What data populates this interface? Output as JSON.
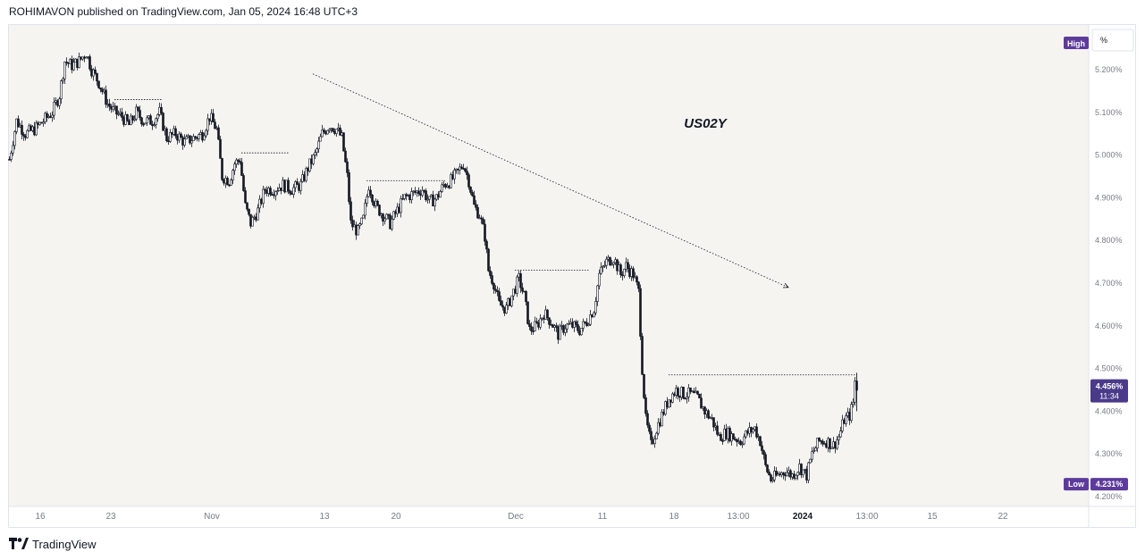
{
  "header": {
    "published_text": "ROHIMAVON published on TradingView.com, Jan 05, 2024 16:48 UTC+3"
  },
  "footer": {
    "brand": "TradingView",
    "logo_icon": "tradingview-logo-icon"
  },
  "colors": {
    "plot_bg": "#f5f4f1",
    "candle": "#131722",
    "badge_purple": "#5d3b9c",
    "badge_dark": "#4a3a8a",
    "axis_text": "#787b86",
    "trendline": "#131722"
  },
  "chart_data": {
    "type": "line",
    "symbol": "US02Y",
    "style": "candlestick",
    "unit": "%",
    "ylim": [
      4.2,
      5.26
    ],
    "y_ticks": [
      "5.200%",
      "5.100%",
      "5.000%",
      "4.900%",
      "4.800%",
      "4.700%",
      "4.600%",
      "4.500%",
      "4.400%",
      "4.300%",
      "4.200%"
    ],
    "y_tick_values": [
      5.2,
      5.1,
      5.0,
      4.9,
      4.8,
      4.7,
      4.6,
      4.5,
      4.4,
      4.3,
      4.2
    ],
    "x_ticks": [
      "16",
      "23",
      "Nov",
      "13",
      "20",
      "Dec",
      "11",
      "18",
      "13:00",
      "2024",
      "13:00",
      "15",
      "22"
    ],
    "x_tick_bold": [
      false,
      false,
      false,
      false,
      false,
      false,
      false,
      false,
      false,
      true,
      false,
      false,
      false
    ],
    "price_path": [
      [
        0,
        4.99
      ],
      [
        8,
        5.08
      ],
      [
        18,
        5.05
      ],
      [
        28,
        5.06
      ],
      [
        38,
        5.08
      ],
      [
        48,
        5.1
      ],
      [
        56,
        5.14
      ],
      [
        62,
        5.22
      ],
      [
        70,
        5.21
      ],
      [
        78,
        5.22
      ],
      [
        86,
        5.24
      ],
      [
        92,
        5.2
      ],
      [
        100,
        5.17
      ],
      [
        110,
        5.12
      ],
      [
        118,
        5.1
      ],
      [
        126,
        5.09
      ],
      [
        134,
        5.07
      ],
      [
        142,
        5.1
      ],
      [
        150,
        5.08
      ],
      [
        160,
        5.08
      ],
      [
        168,
        5.1
      ],
      [
        176,
        5.04
      ],
      [
        186,
        5.05
      ],
      [
        196,
        5.03
      ],
      [
        206,
        5.04
      ],
      [
        216,
        5.05
      ],
      [
        224,
        5.09
      ],
      [
        232,
        5.06
      ],
      [
        238,
        4.95
      ],
      [
        246,
        4.94
      ],
      [
        252,
        4.98
      ],
      [
        258,
        4.99
      ],
      [
        264,
        4.88
      ],
      [
        270,
        4.84
      ],
      [
        278,
        4.87
      ],
      [
        286,
        4.92
      ],
      [
        296,
        4.92
      ],
      [
        306,
        4.93
      ],
      [
        316,
        4.92
      ],
      [
        326,
        4.93
      ],
      [
        334,
        4.97
      ],
      [
        342,
        5.0
      ],
      [
        350,
        5.05
      ],
      [
        358,
        5.07
      ],
      [
        366,
        5.06
      ],
      [
        372,
        5.04
      ],
      [
        378,
        4.95
      ],
      [
        382,
        4.84
      ],
      [
        390,
        4.82
      ],
      [
        396,
        4.85
      ],
      [
        402,
        4.93
      ],
      [
        410,
        4.88
      ],
      [
        418,
        4.86
      ],
      [
        426,
        4.84
      ],
      [
        434,
        4.87
      ],
      [
        442,
        4.9
      ],
      [
        452,
        4.91
      ],
      [
        462,
        4.92
      ],
      [
        470,
        4.89
      ],
      [
        478,
        4.9
      ],
      [
        486,
        4.93
      ],
      [
        494,
        4.94
      ],
      [
        502,
        4.96
      ],
      [
        508,
        4.98
      ],
      [
        514,
        4.94
      ],
      [
        520,
        4.88
      ],
      [
        526,
        4.86
      ],
      [
        532,
        4.81
      ],
      [
        536,
        4.73
      ],
      [
        542,
        4.7
      ],
      [
        548,
        4.65
      ],
      [
        556,
        4.64
      ],
      [
        564,
        4.68
      ],
      [
        570,
        4.71
      ],
      [
        576,
        4.67
      ],
      [
        582,
        4.59
      ],
      [
        590,
        4.6
      ],
      [
        598,
        4.63
      ],
      [
        606,
        4.61
      ],
      [
        614,
        4.58
      ],
      [
        622,
        4.6
      ],
      [
        630,
        4.6
      ],
      [
        638,
        4.59
      ],
      [
        646,
        4.61
      ],
      [
        654,
        4.64
      ],
      [
        660,
        4.72
      ],
      [
        668,
        4.75
      ],
      [
        676,
        4.76
      ],
      [
        684,
        4.72
      ],
      [
        690,
        4.74
      ],
      [
        698,
        4.72
      ],
      [
        704,
        4.68
      ],
      [
        708,
        4.5
      ],
      [
        712,
        4.38
      ],
      [
        718,
        4.32
      ],
      [
        724,
        4.36
      ],
      [
        732,
        4.4
      ],
      [
        738,
        4.43
      ],
      [
        746,
        4.45
      ],
      [
        754,
        4.44
      ],
      [
        762,
        4.44
      ],
      [
        770,
        4.43
      ],
      [
        778,
        4.4
      ],
      [
        786,
        4.38
      ],
      [
        794,
        4.34
      ],
      [
        802,
        4.35
      ],
      [
        810,
        4.34
      ],
      [
        818,
        4.33
      ],
      [
        826,
        4.35
      ],
      [
        834,
        4.36
      ],
      [
        840,
        4.33
      ],
      [
        846,
        4.27
      ],
      [
        852,
        4.24
      ],
      [
        860,
        4.25
      ],
      [
        868,
        4.26
      ],
      [
        876,
        4.25
      ],
      [
        884,
        4.27
      ],
      [
        892,
        4.25
      ],
      [
        898,
        4.3
      ],
      [
        906,
        4.33
      ],
      [
        914,
        4.33
      ],
      [
        922,
        4.32
      ],
      [
        928,
        4.34
      ],
      [
        934,
        4.38
      ],
      [
        940,
        4.39
      ],
      [
        944,
        4.42
      ],
      [
        946,
        4.47
      ],
      [
        948,
        4.456
      ]
    ],
    "resistance_lines": [
      {
        "x1": 118,
        "x2": 172,
        "y": 5.13
      },
      {
        "x1": 260,
        "x2": 314,
        "y": 5.005
      },
      {
        "x1": 400,
        "x2": 488,
        "y": 4.94
      },
      {
        "x1": 566,
        "x2": 650,
        "y": 4.73
      },
      {
        "x1": 738,
        "x2": 948,
        "y": 4.485
      }
    ],
    "trendline": {
      "x1": 340,
      "y1": 5.19,
      "x2": 872,
      "y2": 4.69
    },
    "high_label": "High",
    "percent_button": "%",
    "last_price_label": "4.456%",
    "last_price_value": 4.456,
    "countdown_label": "11:34",
    "low_label": "Low",
    "low_value_label": "4.231%",
    "low_value": 4.231
  }
}
